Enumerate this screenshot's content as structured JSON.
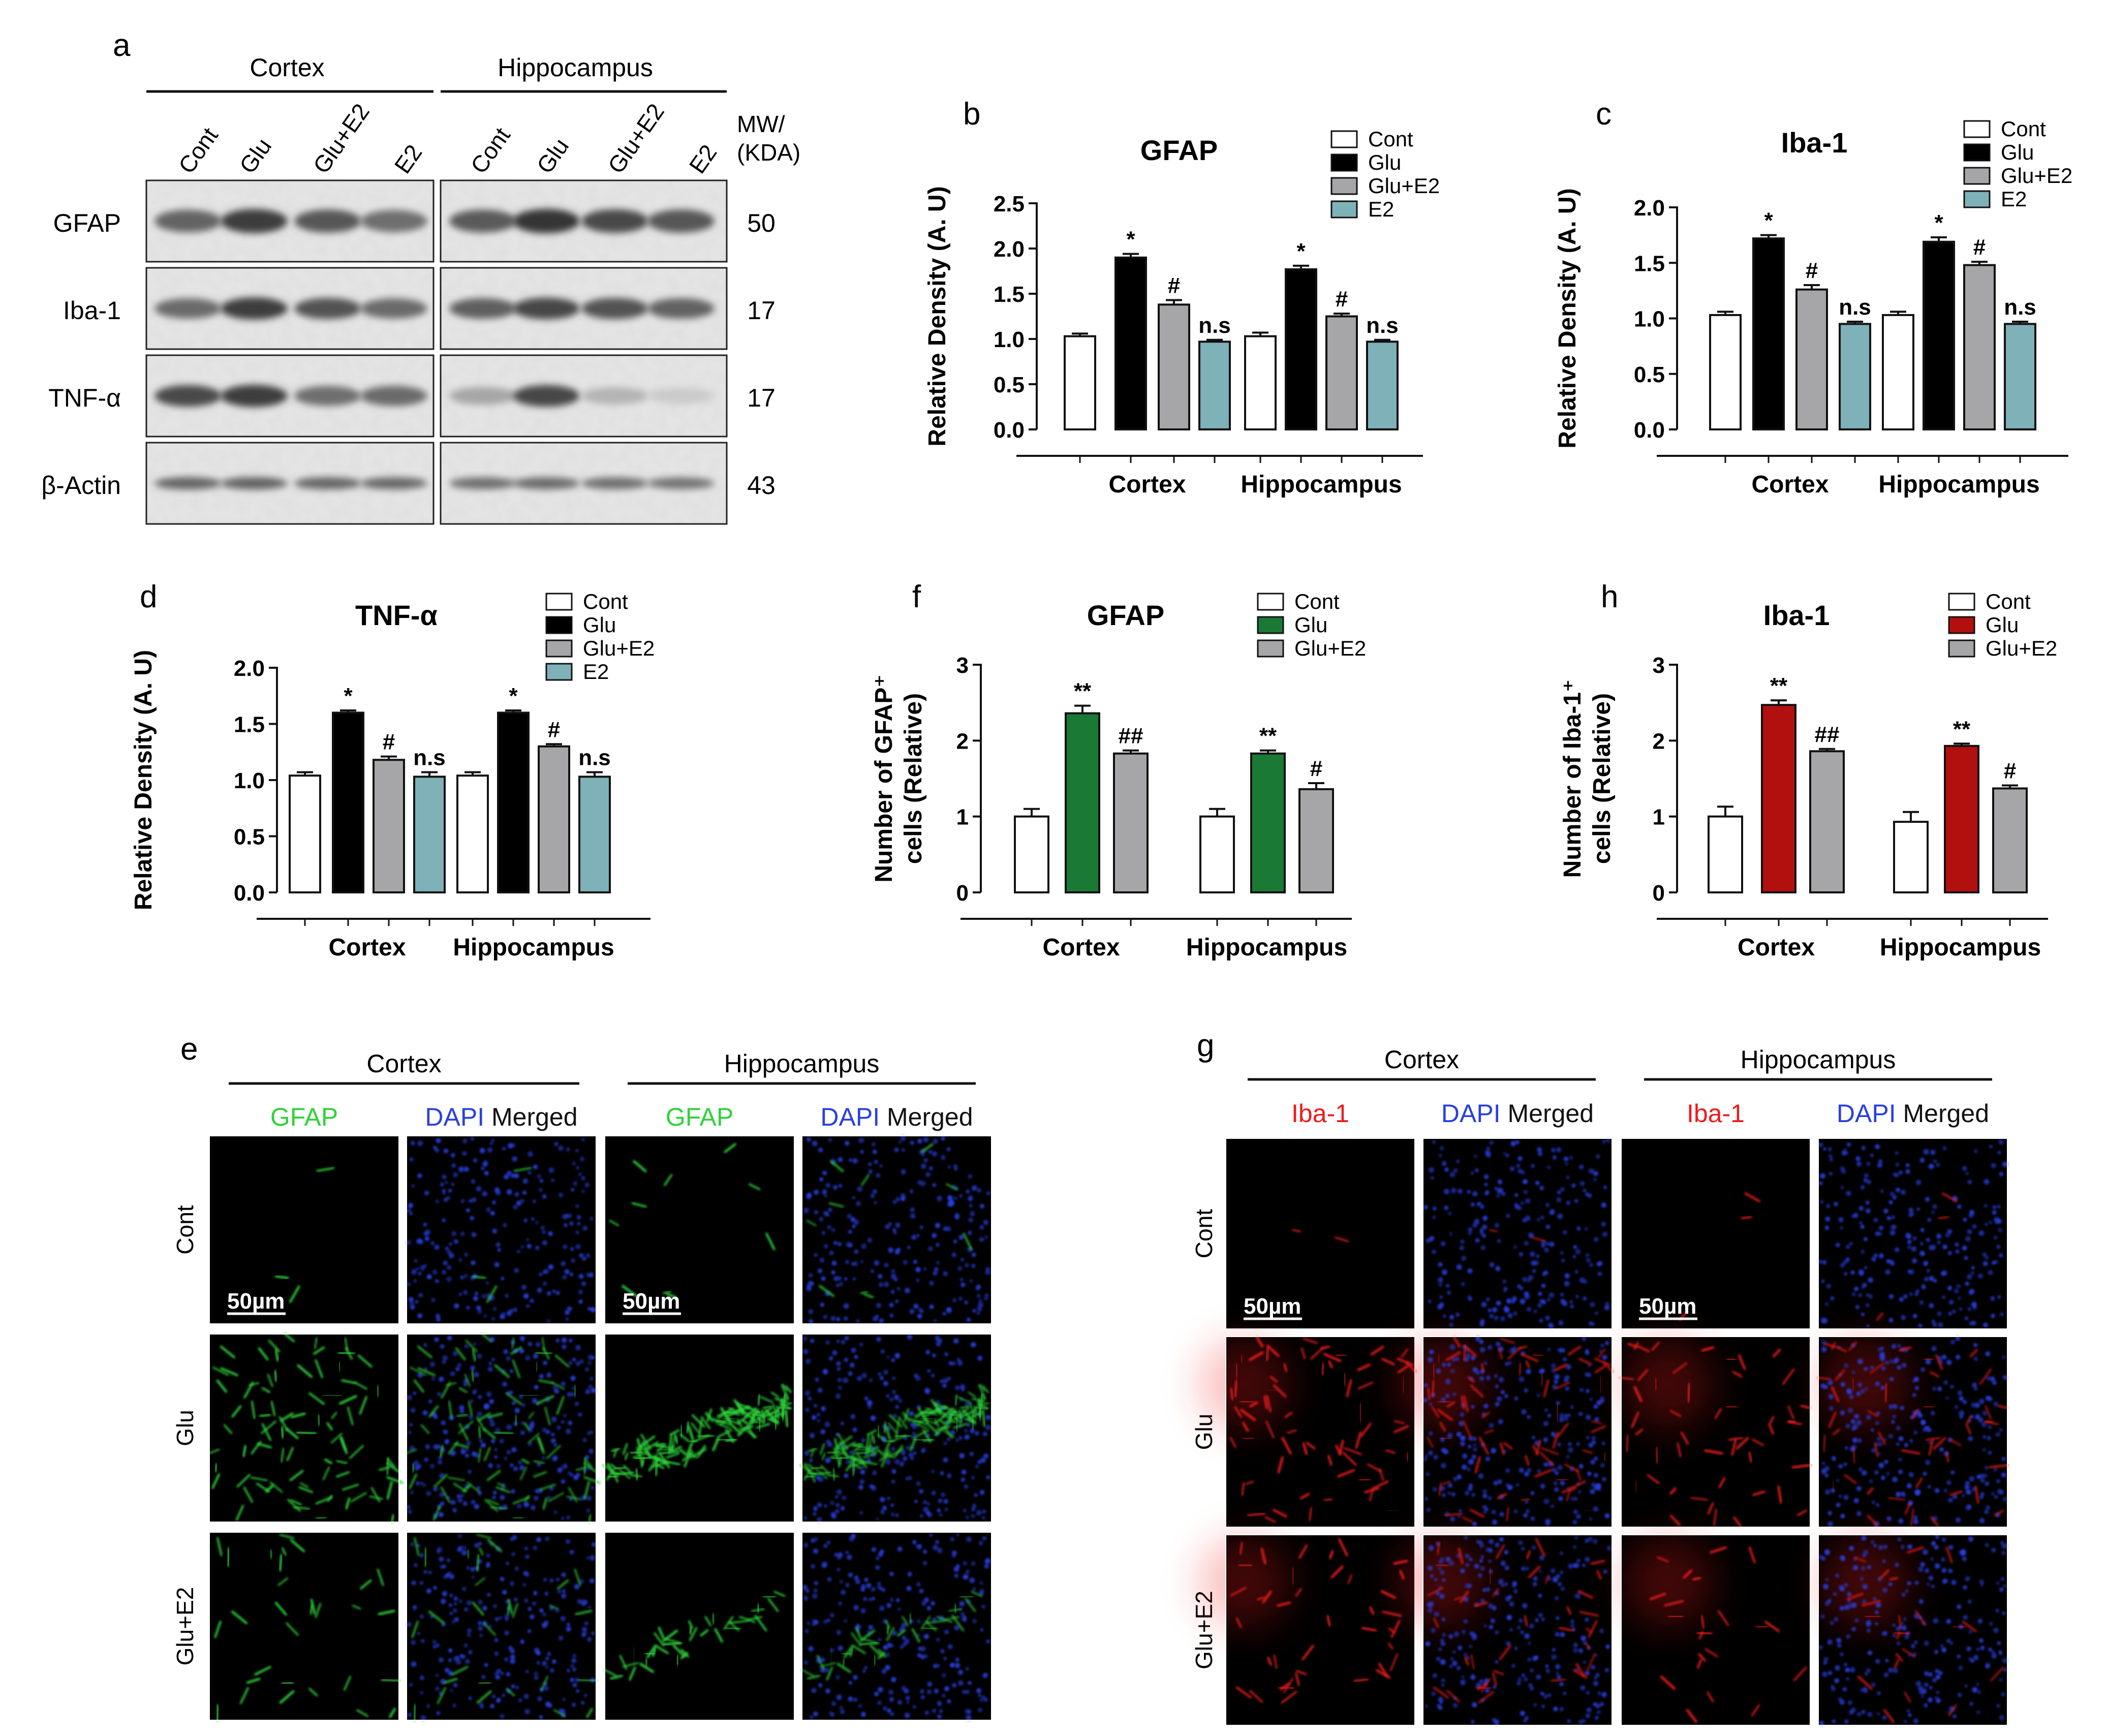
{
  "panel_letters": {
    "a": "a",
    "b": "b",
    "c": "c",
    "d": "d",
    "e": "e",
    "f": "f",
    "g": "g",
    "h": "h"
  },
  "blot": {
    "regions": [
      "Cortex",
      "Hippocampus"
    ],
    "lanes": [
      "Cont",
      "Glu",
      "Glu+E2",
      "E2",
      "Cont",
      "Glu",
      "Glu+E2",
      "E2"
    ],
    "mw_header": [
      "MW/",
      "(KDA)"
    ],
    "rows": [
      {
        "label": "GFAP",
        "mw": "50"
      },
      {
        "label": "Iba-1",
        "mw": "17"
      },
      {
        "label": "TNF-α",
        "mw": "17"
      },
      {
        "label": "β-Actin",
        "mw": "43"
      }
    ]
  },
  "colors": {
    "cont": "#ffffff",
    "glu": "#000000",
    "glu_e2": "#a6a6a8",
    "e2": "#7fb1b9",
    "glu_green": "#1a7a35",
    "glu_red": "#b20f0f",
    "gfap_stain": "#2fd23a",
    "iba_stain": "#ee1a1a",
    "dapi": "#2a3fe0"
  },
  "chart_data": [
    {
      "id": "b",
      "type": "bar",
      "title": "GFAP",
      "xlabel": "",
      "ylabel": "Relative Density (A. U)",
      "categories": [
        "Cortex",
        "Hippocampus"
      ],
      "ylim": [
        0,
        2.5
      ],
      "yticks": [
        "0.0",
        "0.5",
        "1.0",
        "1.5",
        "2.0",
        "2.5"
      ],
      "series": [
        {
          "name": "Cont",
          "color": "#ffffff",
          "values": [
            1.03,
            1.03
          ],
          "err": [
            0.03,
            0.04
          ],
          "sig": [
            "",
            ""
          ]
        },
        {
          "name": "Glu",
          "color": "#000000",
          "values": [
            1.9,
            1.77
          ],
          "err": [
            0.04,
            0.04
          ],
          "sig": [
            "*",
            "*"
          ]
        },
        {
          "name": "Glu+E2",
          "color": "#a6a6a8",
          "values": [
            1.38,
            1.25
          ],
          "err": [
            0.05,
            0.03
          ],
          "sig": [
            "#",
            "#"
          ]
        },
        {
          "name": "E2",
          "color": "#7fb1b9",
          "values": [
            0.97,
            0.97
          ],
          "err": [
            0.02,
            0.02
          ],
          "sig": [
            "n.s",
            "n.s"
          ]
        }
      ]
    },
    {
      "id": "c",
      "type": "bar",
      "title": "Iba-1",
      "xlabel": "",
      "ylabel": "Relative Density (A. U)",
      "categories": [
        "Cortex",
        "Hippocampus"
      ],
      "ylim": [
        0,
        2.0
      ],
      "yticks": [
        "0.0",
        "0.5",
        "1.0",
        "1.5",
        "2.0"
      ],
      "series": [
        {
          "name": "Cont",
          "color": "#ffffff",
          "values": [
            1.03,
            1.03
          ],
          "err": [
            0.03,
            0.03
          ],
          "sig": [
            "",
            ""
          ]
        },
        {
          "name": "Glu",
          "color": "#000000",
          "values": [
            1.72,
            1.69
          ],
          "err": [
            0.03,
            0.04
          ],
          "sig": [
            "*",
            "*"
          ]
        },
        {
          "name": "Glu+E2",
          "color": "#a6a6a8",
          "values": [
            1.26,
            1.48
          ],
          "err": [
            0.04,
            0.03
          ],
          "sig": [
            "#",
            "#"
          ]
        },
        {
          "name": "E2",
          "color": "#7fb1b9",
          "values": [
            0.95,
            0.95
          ],
          "err": [
            0.02,
            0.02
          ],
          "sig": [
            "n.s",
            "n.s"
          ]
        }
      ]
    },
    {
      "id": "d",
      "type": "bar",
      "title": "TNF-α",
      "xlabel": "",
      "ylabel": "Relative Density (A. U)",
      "categories": [
        "Cortex",
        "Hippocampus"
      ],
      "ylim": [
        0,
        2.0
      ],
      "yticks": [
        "0.0",
        "0.5",
        "1.0",
        "1.5",
        "2.0"
      ],
      "series": [
        {
          "name": "Cont",
          "color": "#ffffff",
          "values": [
            1.04,
            1.04
          ],
          "err": [
            0.03,
            0.03
          ],
          "sig": [
            "",
            ""
          ]
        },
        {
          "name": "Glu",
          "color": "#000000",
          "values": [
            1.6,
            1.6
          ],
          "err": [
            0.02,
            0.02
          ],
          "sig": [
            "*",
            "*"
          ]
        },
        {
          "name": "Glu+E2",
          "color": "#a6a6a8",
          "values": [
            1.18,
            1.3
          ],
          "err": [
            0.03,
            0.02
          ],
          "sig": [
            "#",
            "#"
          ]
        },
        {
          "name": "E2",
          "color": "#7fb1b9",
          "values": [
            1.03,
            1.03
          ],
          "err": [
            0.04,
            0.04
          ],
          "sig": [
            "n.s",
            "n.s"
          ]
        }
      ]
    },
    {
      "id": "f",
      "type": "bar",
      "title": "GFAP",
      "xlabel": "",
      "ylabel": "Number of GFAP⁺ cells (Relative)",
      "ylabel_lines": [
        "Number of GFAP⁺",
        "cells (Relative)"
      ],
      "categories": [
        "Cortex",
        "Hippocampus"
      ],
      "ylim": [
        0,
        3
      ],
      "yticks": [
        "0",
        "1",
        "2",
        "3"
      ],
      "series": [
        {
          "name": "Cont",
          "color": "#ffffff",
          "values": [
            1.0,
            1.0
          ],
          "err": [
            0.1,
            0.1
          ],
          "sig": [
            "",
            ""
          ]
        },
        {
          "name": "Glu",
          "color": "#1a7a35",
          "values": [
            2.36,
            1.83
          ],
          "err": [
            0.1,
            0.04
          ],
          "sig": [
            "**",
            "**"
          ]
        },
        {
          "name": "Glu+E2",
          "color": "#a6a6a8",
          "values": [
            1.83,
            1.36
          ],
          "err": [
            0.04,
            0.08
          ],
          "sig": [
            "##",
            "#"
          ]
        }
      ]
    },
    {
      "id": "h",
      "type": "bar",
      "title": "Iba-1",
      "xlabel": "",
      "ylabel": "Number of Iba-1⁺ cells (Relative)",
      "ylabel_lines": [
        "Number of Iba-1⁺",
        "cells (Relative)"
      ],
      "categories": [
        "Cortex",
        "Hippocampus"
      ],
      "ylim": [
        0,
        3
      ],
      "yticks": [
        "0",
        "1",
        "2",
        "3"
      ],
      "series": [
        {
          "name": "Cont",
          "color": "#ffffff",
          "values": [
            1.0,
            0.93
          ],
          "err": [
            0.13,
            0.13
          ],
          "sig": [
            "",
            ""
          ]
        },
        {
          "name": "Glu",
          "color": "#b20f0f",
          "values": [
            2.47,
            1.93
          ],
          "err": [
            0.06,
            0.03
          ],
          "sig": [
            "**",
            "**"
          ]
        },
        {
          "name": "Glu+E2",
          "color": "#a6a6a8",
          "values": [
            1.86,
            1.37
          ],
          "err": [
            0.03,
            0.04
          ],
          "sig": [
            "##",
            "#"
          ]
        }
      ]
    }
  ],
  "micrographs": [
    {
      "id": "e",
      "regions": [
        "Cortex",
        "Hippocampus"
      ],
      "stain": "GFAP",
      "dapi": "DAPI",
      "merged": "Merged",
      "rows": [
        "Cont",
        "Glu",
        "Glu+E2"
      ],
      "scale_bar": "50µm"
    },
    {
      "id": "g",
      "regions": [
        "Cortex",
        "Hippocampus"
      ],
      "stain": "Iba-1",
      "dapi": "DAPI",
      "merged": "Merged",
      "rows": [
        "Cont",
        "Glu",
        "Glu+E2"
      ],
      "scale_bar": "50µm"
    }
  ]
}
